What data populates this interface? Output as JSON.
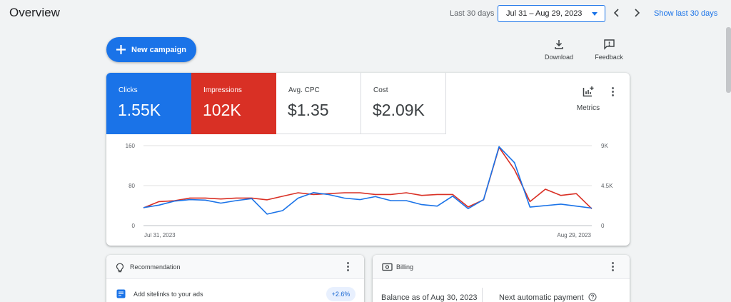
{
  "header": {
    "title": "Overview",
    "range_label": "Last 30 days",
    "date_range": "Jul 31 – Aug 29, 2023",
    "show_last": "Show last 30 days"
  },
  "toolbar": {
    "new_campaign": "New campaign",
    "download": "Download",
    "feedback": "Feedback"
  },
  "metrics": [
    {
      "name": "Clicks",
      "value": "1.55K",
      "color": "#1a73e8"
    },
    {
      "name": "Impressions",
      "value": "102K",
      "color": "#d93025"
    },
    {
      "name": "Avg. CPC",
      "value": "$1.35"
    },
    {
      "name": "Cost",
      "value": "$2.09K"
    }
  ],
  "metrics_button": "Metrics",
  "chart_data": {
    "type": "line",
    "x_start_label": "Jul 31, 2023",
    "x_end_label": "Aug 29, 2023",
    "y_left_ticks": [
      "160",
      "80",
      "0"
    ],
    "y_right_ticks": [
      "9K",
      "4.5K",
      "0"
    ],
    "ylim_left": [
      0,
      160
    ],
    "ylim_right": [
      0,
      9000
    ],
    "series": [
      {
        "name": "Clicks",
        "axis": "left",
        "color": "#1a73e8",
        "values": [
          36,
          41,
          49,
          52,
          51,
          45,
          50,
          54,
          23,
          30,
          55,
          66,
          62,
          55,
          52,
          58,
          50,
          50,
          42,
          39,
          59,
          34,
          52,
          158,
          126,
          37,
          40,
          43,
          39,
          35
        ]
      },
      {
        "name": "Impressions",
        "axis": "right",
        "color": "#d93025",
        "values": [
          2000,
          2700,
          2800,
          3100,
          3100,
          3000,
          3100,
          3100,
          2900,
          3300,
          3700,
          3500,
          3600,
          3700,
          3700,
          3500,
          3500,
          3700,
          3400,
          3500,
          3500,
          2100,
          2900,
          8800,
          6300,
          2700,
          4100,
          3400,
          3600,
          1900
        ]
      }
    ]
  },
  "recommendation": {
    "title": "Recommendation",
    "item_text": "Add sitelinks to your ads",
    "uplift": "+2.6%"
  },
  "billing": {
    "title": "Billing",
    "balance_label": "Balance as of Aug 30, 2023",
    "next_payment_label": "Next automatic payment"
  }
}
